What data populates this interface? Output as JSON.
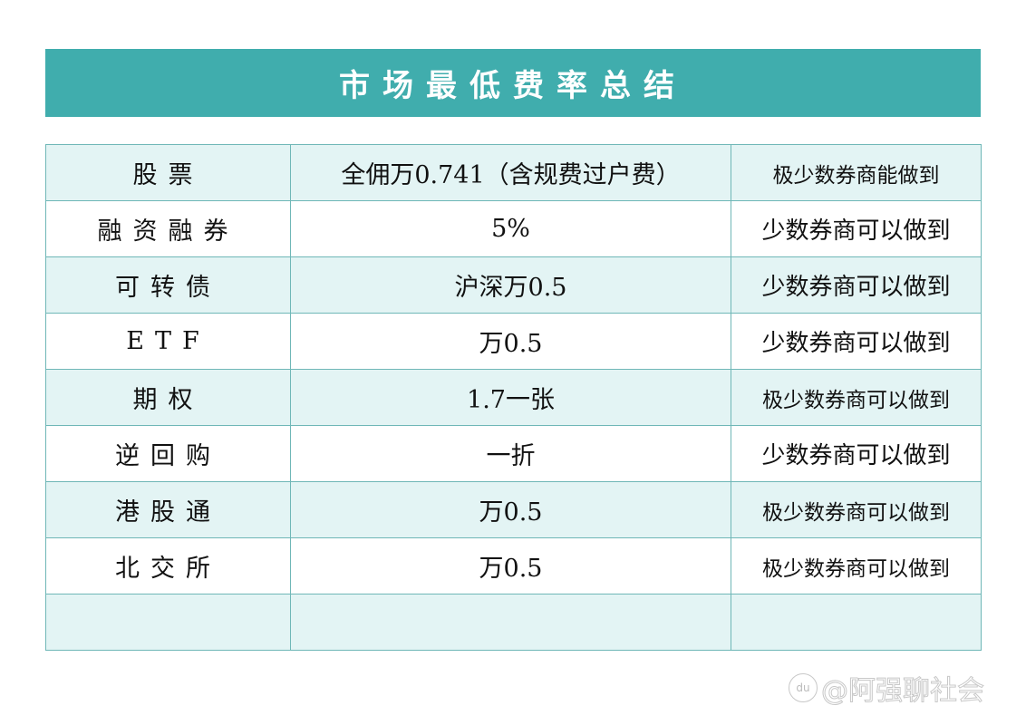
{
  "title": "市场最低费率总结",
  "rows": [
    {
      "type": "股票",
      "fee": "全佣万0.741（含规费过户费）",
      "note": "极少数券商能做到",
      "small": true
    },
    {
      "type": "融资融券",
      "fee": "5%",
      "note": "少数券商可以做到",
      "small": false
    },
    {
      "type": "可转债",
      "fee": "沪深万0.5",
      "note": "少数券商可以做到",
      "small": false
    },
    {
      "type": "ETF",
      "fee": "万0.5",
      "note": "少数券商可以做到",
      "small": false
    },
    {
      "type": "期权",
      "fee": "1.7一张",
      "note": "极少数券商可以做到",
      "small": true
    },
    {
      "type": "逆回购",
      "fee": "一折",
      "note": "少数券商可以做到",
      "small": false
    },
    {
      "type": "港股通",
      "fee": "万0.5",
      "note": "极少数券商可以做到",
      "small": true
    },
    {
      "type": "北交所",
      "fee": "万0.5",
      "note": "极少数券商可以做到",
      "small": true
    },
    {
      "type": "",
      "fee": "",
      "note": "",
      "small": false
    }
  ],
  "watermark": {
    "logo": "du",
    "text": "@阿强聊社会"
  },
  "colors": {
    "header": "#40adad",
    "row_alt": "#e3f4f4",
    "border": "#6fb7b7"
  }
}
